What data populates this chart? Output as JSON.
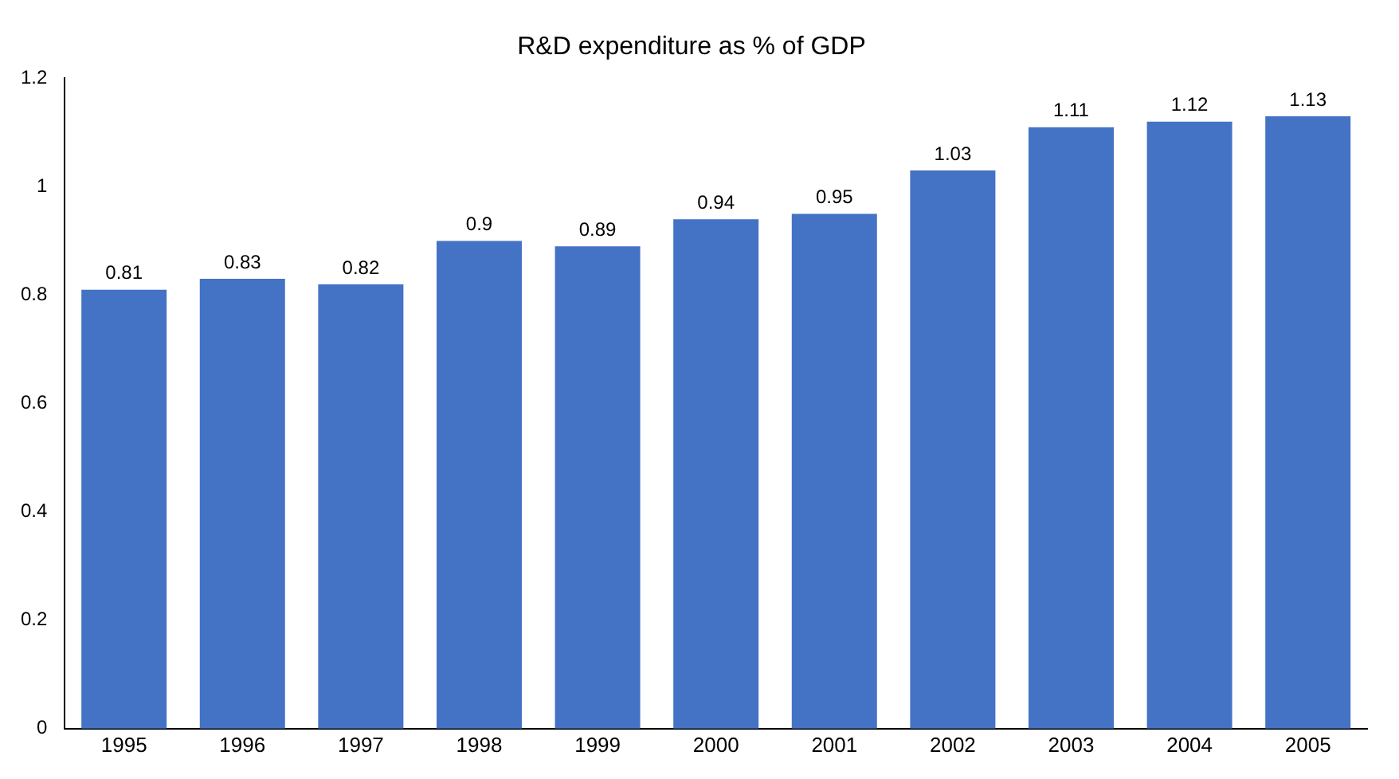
{
  "chart_data": {
    "type": "bar",
    "title": "R&D expenditure as % of GDP",
    "categories": [
      "1995",
      "1996",
      "1997",
      "1998",
      "1999",
      "2000",
      "2001",
      "2002",
      "2003",
      "2004",
      "2005"
    ],
    "values": [
      0.81,
      0.83,
      0.82,
      0.9,
      0.89,
      0.94,
      0.95,
      1.03,
      1.11,
      1.12,
      1.13
    ],
    "color": "#4472c4",
    "ylim": [
      0,
      1.2
    ],
    "yticks": [
      0,
      0.2,
      0.4,
      0.6,
      0.8,
      1,
      1.2
    ],
    "grid": false,
    "legend": false,
    "data_labels": true
  }
}
